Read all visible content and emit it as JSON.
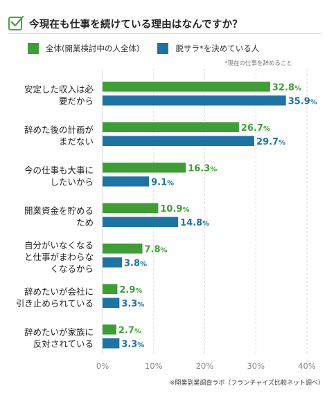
{
  "title": "今現在も仕事を続けている理由はなんですか？",
  "legend": [
    {
      "label": "全体(開業検討中の人全体)",
      "color": "#3e9e35"
    },
    {
      "label": "脱サラ*を決めている人",
      "color": "#1f73a3"
    }
  ],
  "note": "*現在の仕事を辞めること",
  "source": "※開業副業調査ラボ（フランチャイズ比較ネット調べ）",
  "chart_data": {
    "type": "bar",
    "orientation": "horizontal",
    "title": "今現在も仕事を続けている理由はなんですか？",
    "categories": [
      [
        "安定した収入は必",
        "要だから"
      ],
      [
        "辞めた後の計画が",
        "まだない"
      ],
      [
        "今の仕事も大事に",
        "したいから"
      ],
      [
        "開業資金を貯める",
        "ため"
      ],
      [
        "自分がいなくなる",
        "と仕事がまわらな",
        "くなるから"
      ],
      [
        "辞めたいが会社に",
        "引き止められている"
      ],
      [
        "辞めたいが家族に",
        "反対されている"
      ]
    ],
    "series": [
      {
        "name": "全体(開業検討中の人全体)",
        "color": "#3e9e35",
        "values": [
          32.8,
          26.7,
          16.3,
          10.9,
          7.8,
          2.9,
          2.7
        ]
      },
      {
        "name": "脱サラ*を決めている人",
        "color": "#1f73a3",
        "values": [
          35.9,
          29.7,
          9.1,
          14.8,
          3.8,
          3.3,
          3.3
        ]
      }
    ],
    "xlim": [
      0,
      40
    ],
    "xticks": [
      0,
      10,
      20,
      30,
      40
    ],
    "value_suffix": "%",
    "tick_suffix": "%",
    "grid": true
  }
}
